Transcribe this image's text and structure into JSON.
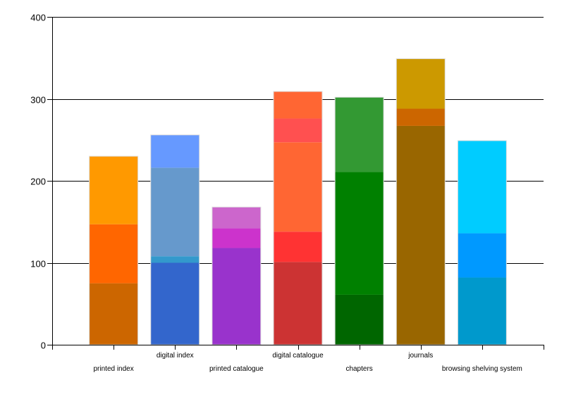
{
  "chart_data": {
    "type": "bar",
    "stacked": true,
    "title": "",
    "xlabel": "",
    "ylabel": "",
    "ylim": [
      0,
      400
    ],
    "yticks": [
      0,
      100,
      200,
      300,
      400
    ],
    "grid": {
      "horizontal": true,
      "vertical": false
    },
    "legend": null,
    "categories": [
      "printed index",
      "digital index",
      "printed catalogue",
      "digital catalogue",
      "chapters",
      "journals",
      "browsing shelving system"
    ],
    "bars": [
      {
        "category": "printed index",
        "total": 230,
        "segments": [
          {
            "value": 75,
            "color": "#CC6600"
          },
          {
            "value": 72,
            "color": "#FF6600"
          },
          {
            "value": 83,
            "color": "#FF9900"
          }
        ]
      },
      {
        "category": "digital index",
        "total": 256,
        "segments": [
          {
            "value": 100,
            "color": "#3366CC"
          },
          {
            "value": 8,
            "color": "#3399CC"
          },
          {
            "value": 108,
            "color": "#6699CC"
          },
          {
            "value": 40,
            "color": "#6699FF"
          }
        ]
      },
      {
        "category": "printed catalogue",
        "total": 168,
        "segments": [
          {
            "value": 118,
            "color": "#9933CC"
          },
          {
            "value": 24,
            "color": "#CC33CC"
          },
          {
            "value": 26,
            "color": "#CC66CC"
          }
        ]
      },
      {
        "category": "digital catalogue",
        "total": 309,
        "segments": [
          {
            "value": 101,
            "color": "#CC3333"
          },
          {
            "value": 37,
            "color": "#FF3333"
          },
          {
            "value": 109,
            "color": "#FF6633"
          },
          {
            "value": 29,
            "color": "#FF5050"
          },
          {
            "value": 33,
            "color": "#FF6633"
          }
        ]
      },
      {
        "category": "chapters",
        "total": 302,
        "segments": [
          {
            "value": 61,
            "color": "#006600"
          },
          {
            "value": 150,
            "color": "#008000"
          },
          {
            "value": 91,
            "color": "#339933"
          }
        ]
      },
      {
        "category": "journals",
        "total": 349,
        "segments": [
          {
            "value": 267,
            "color": "#996600"
          },
          {
            "value": 21,
            "color": "#CC6600"
          },
          {
            "value": 61,
            "color": "#CC9900"
          }
        ]
      },
      {
        "category": "browsing shelving system",
        "total": 249,
        "segments": [
          {
            "value": 82,
            "color": "#0099CC"
          },
          {
            "value": 54,
            "color": "#0099FF"
          },
          {
            "value": 113,
            "color": "#00CCFF"
          }
        ]
      }
    ],
    "label_rows": [
      1,
      0,
      1,
      0,
      1,
      0,
      1
    ]
  }
}
